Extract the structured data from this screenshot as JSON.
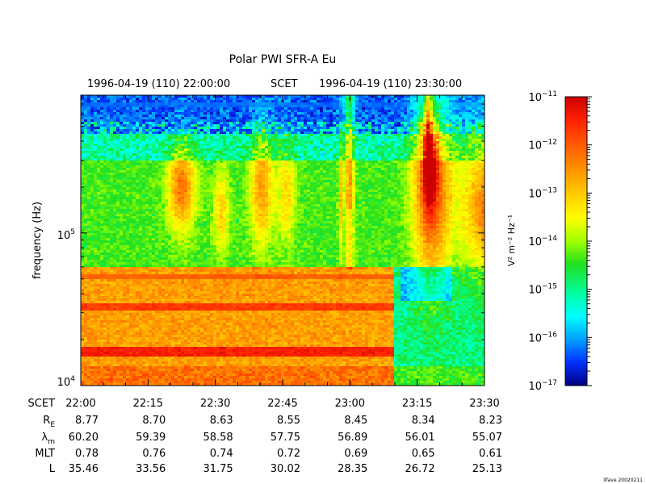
{
  "chart_data": {
    "type": "heatmap",
    "title": "Polar PWI SFR-A Eu",
    "time_header": {
      "start": "1996-04-19 (110) 22:00:00",
      "label": "SCET",
      "end": "1996-04-19 (110) 23:30:00"
    },
    "ylabel": "frequency (Hz)",
    "y_scale": "log",
    "ylim": [
      10000,
      800000
    ],
    "y_ticks": [
      {
        "base": "10",
        "exp": "4",
        "value": 10000
      },
      {
        "base": "10",
        "exp": "5",
        "value": 100000
      }
    ],
    "colorbar": {
      "scale": "log",
      "range": [
        1e-17,
        1e-11
      ],
      "ticks": [
        {
          "base": "10",
          "exp": "−11",
          "value": -11
        },
        {
          "base": "10",
          "exp": "−12",
          "value": -12
        },
        {
          "base": "10",
          "exp": "−13",
          "value": -13
        },
        {
          "base": "10",
          "exp": "−14",
          "value": -14
        },
        {
          "base": "10",
          "exp": "−15",
          "value": -15
        },
        {
          "base": "10",
          "exp": "−16",
          "value": -16
        },
        {
          "base": "10",
          "exp": "−17",
          "value": -17
        }
      ],
      "unit_label": "V² m⁻² Hz⁻¹"
    },
    "ephemeris": {
      "rows": [
        {
          "label": "SCET",
          "values": [
            "22:00",
            "22:15",
            "22:30",
            "22:45",
            "23:00",
            "23:15",
            "23:30"
          ]
        },
        {
          "label": "R",
          "sub": "E",
          "values": [
            "8.77",
            "8.70",
            "8.63",
            "8.55",
            "8.45",
            "8.34",
            "8.23"
          ]
        },
        {
          "label": "λ",
          "sub": "m",
          "values": [
            "60.20",
            "59.39",
            "58.58",
            "57.75",
            "56.89",
            "56.01",
            "55.07"
          ]
        },
        {
          "label": "MLT",
          "values": [
            "0.78",
            "0.76",
            "0.74",
            "0.72",
            "0.69",
            "0.65",
            "0.61"
          ]
        },
        {
          "label": "L",
          "values": [
            "35.46",
            "33.56",
            "31.75",
            "30.02",
            "28.35",
            "26.72",
            "25.13"
          ]
        }
      ]
    },
    "footer": "lifave 20020211"
  }
}
